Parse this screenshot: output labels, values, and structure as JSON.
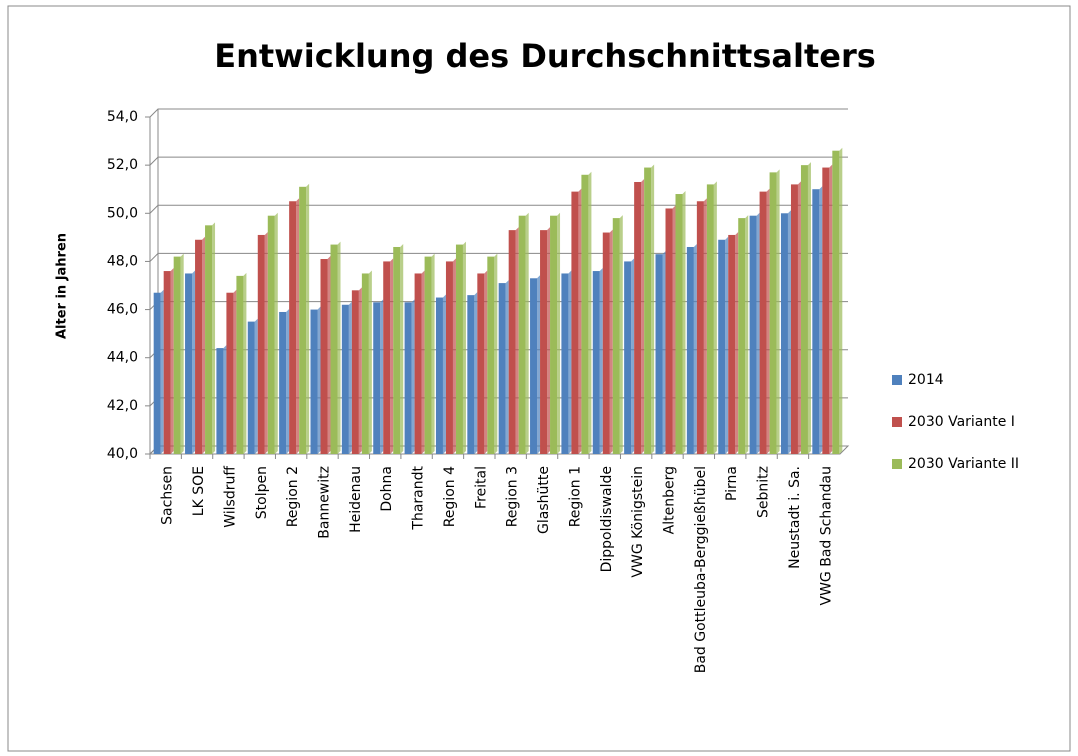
{
  "chart_data": {
    "type": "bar",
    "title": "Entwicklung des Durchschnittsalters",
    "y_label": "Alter in Jahren",
    "categories": [
      "Sachsen",
      "LK SOE",
      "Wilsdruff",
      "Stolpen",
      "Region 2",
      "Bannewitz",
      "Heidenau",
      "Dohna",
      "Tharandt",
      "Region 4",
      "Freital",
      "Region 3",
      "Glashütte",
      "Region 1",
      "Dippoldiswalde",
      "VWG Königstein",
      "Altenberg",
      "Bad Gottleuba-Berggießhübel",
      "Pirna",
      "Sebnitz",
      "Neustadt i. Sa.",
      "VWG Bad Schandau"
    ],
    "series": [
      {
        "name": "2014",
        "color": "#4f81bd",
        "values": [
          46.7,
          47.5,
          44.4,
          45.5,
          45.9,
          46.0,
          46.2,
          46.3,
          46.3,
          46.5,
          46.6,
          47.1,
          47.3,
          47.5,
          47.6,
          48.0,
          48.3,
          48.6,
          48.9,
          49.9,
          50.0,
          51.0
        ]
      },
      {
        "name": "2030 Variante I",
        "color": "#c0504d",
        "values": [
          47.6,
          48.9,
          46.7,
          49.1,
          50.5,
          48.1,
          46.8,
          48.0,
          47.5,
          48.0,
          47.5,
          49.3,
          49.3,
          50.9,
          49.2,
          51.3,
          50.2,
          50.5,
          49.1,
          50.9,
          51.2,
          51.9
        ]
      },
      {
        "name": "2030 Variante II",
        "color": "#9bbb59",
        "values": [
          48.2,
          49.5,
          47.4,
          49.9,
          51.1,
          48.7,
          47.5,
          48.6,
          48.2,
          48.7,
          48.2,
          49.9,
          49.9,
          51.6,
          49.8,
          51.9,
          50.8,
          51.2,
          49.8,
          51.7,
          52.0,
          52.6
        ]
      }
    ],
    "ylim": [
      40,
      54
    ],
    "yticks": [
      {
        "value": 40,
        "label": "40,0"
      },
      {
        "value": 42,
        "label": "42,0"
      },
      {
        "value": 44,
        "label": "44,0"
      },
      {
        "value": 46,
        "label": "46,0"
      },
      {
        "value": 48,
        "label": "48,0"
      },
      {
        "value": 50,
        "label": "50,0"
      },
      {
        "value": 52,
        "label": "52,0"
      },
      {
        "value": 54,
        "label": "54,0"
      }
    ],
    "grid": true,
    "legend": "right"
  }
}
